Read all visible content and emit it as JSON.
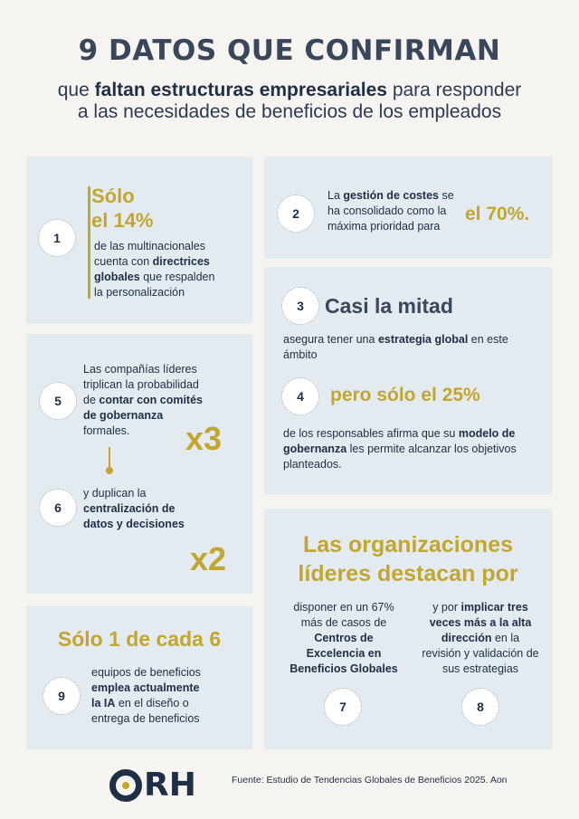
{
  "header": {
    "title": "9 DATOS QUE CONFIRMAN",
    "sub_pre": "que",
    "sub_bold": "faltan estructuras empresariales",
    "sub_post": "para responder",
    "sub_line2": "a las necesidades de beneficios de los empleados"
  },
  "facts": {
    "f1": {
      "num": "1",
      "h1": "Sólo",
      "h2": "el 14%",
      "t1": "de las multinacionales",
      "t2": "cuenta con",
      "b1": "directrices",
      "b2": "globales",
      "t3": "que respalden",
      "t4": "la personalización"
    },
    "f2": {
      "num": "2",
      "t1": "La",
      "b1": "gestión de costes",
      "t2": "se",
      "t3": "ha consolidado como la",
      "t4": "máxima prioridad para",
      "big": "el 70%."
    },
    "f3": {
      "num": "3",
      "big": "Casi la mitad",
      "t1": "asegura tener una",
      "b1": "estrategia global",
      "t2": "en este",
      "t3": "ámbito"
    },
    "f4": {
      "num": "4",
      "big": "pero sólo el 25%",
      "t1": "de los responsables afirma que su",
      "b1": "modelo de",
      "b2": "gobernanza",
      "t2": "les permite alcanzar los objetivos",
      "t3": "planteados."
    },
    "f5": {
      "num": "5",
      "t1": "Las compañías líderes",
      "t2": "triplican la probabilidad",
      "t3": "de",
      "b1": "contar con comités",
      "b2": "de gobernanza",
      "t4": "formales.",
      "mult": "x3"
    },
    "f6": {
      "num": "6",
      "t1": "y duplican la",
      "b1": "centralización de",
      "b2": "datos y decisiones",
      "mult": "x2"
    },
    "lead": {
      "h1": "Las organizaciones",
      "h2": "líderes destacan por"
    },
    "f7": {
      "num": "7",
      "t1": "disponer en un 67%",
      "t2": "más de casos de",
      "b1": "Centros de",
      "b2": "Excelencia en",
      "b3": "Beneficios Globales"
    },
    "f8": {
      "num": "8",
      "t1": "y por",
      "b1": "implicar tres",
      "b2": "veces más a la alta",
      "b3": "dirección",
      "t2": "en la",
      "t3": "revisión y validación de",
      "t4": "sus estrategias"
    },
    "f9": {
      "num": "9",
      "big": "Sólo 1 de cada 6",
      "t1": "equipos de beneficios",
      "b1": "emplea actualmente",
      "b2": "la IA",
      "t2": "en el diseño o",
      "t3": "entrega de beneficios"
    }
  },
  "footer": {
    "logo": "RH",
    "source": "Fuente: Estudio de Tendencias Globales de Beneficios 2025. Aon"
  },
  "colors": {
    "gold": "#c1a730",
    "navy": "#1f2f45",
    "card": "#e3eaf0"
  }
}
